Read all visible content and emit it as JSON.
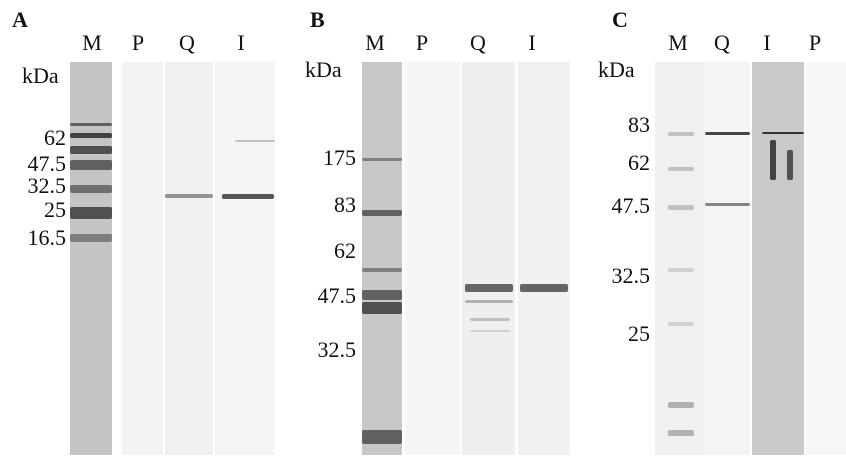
{
  "panels": [
    {
      "label": "A",
      "lanes": [
        "M",
        "P",
        "Q",
        "I"
      ],
      "unit": "kDa",
      "markers": [
        "62",
        "47.5",
        "32.5",
        "25",
        "16.5"
      ]
    },
    {
      "label": "B",
      "lanes": [
        "M",
        "P",
        "Q",
        "I"
      ],
      "unit": "kDa",
      "markers": [
        "175",
        "83",
        "62",
        "47.5",
        "32.5"
      ]
    },
    {
      "label": "C",
      "lanes": [
        "M",
        "Q",
        "I",
        "P"
      ],
      "unit": "kDa",
      "markers": [
        "83",
        "62",
        "47.5",
        "32.5",
        "25"
      ]
    }
  ]
}
